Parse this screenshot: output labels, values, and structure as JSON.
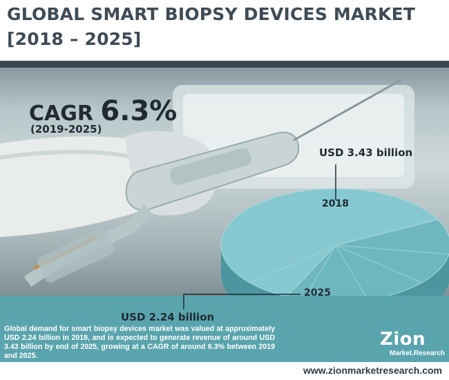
{
  "header": {
    "title_line1": "GLOBAL SMART BIOPSY DEVICES MARKET",
    "title_line2": "[2018 – 2025]"
  },
  "cagr": {
    "label": "CAGR",
    "value": "6.3%",
    "period": "(2019-2025)"
  },
  "description": "Global demand for smart biopsy devices market was valued at approximately USD 2.24 billion in 2018, and is expected to generate revenue of around USD 3.43 billion by end of 2025, growing at a CAGR of around 6.3% between 2019 and 2025.",
  "footer": {
    "url": "www.zionmarketresearch.com",
    "logo_main": "Zion",
    "logo_sub": "Market.Research"
  },
  "chart_data": {
    "type": "pie",
    "categories": [
      "2018",
      "2025"
    ],
    "values": [
      2.24,
      3.43
    ],
    "value_labels": [
      "USD 2.24 billion",
      "USD 3.43 billion"
    ],
    "unit": "USD billion"
  },
  "colors": {
    "title": "#3f4b55",
    "band": "#5aa4ad",
    "pie_top": "#7cc0c8",
    "pie_side": "#4d969f"
  }
}
